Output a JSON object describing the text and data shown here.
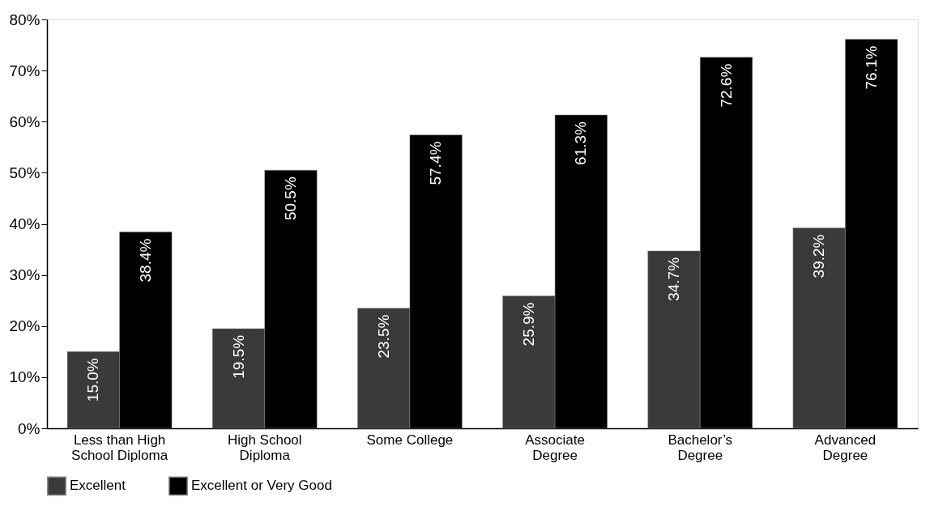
{
  "chart_data": {
    "type": "bar",
    "categories": [
      "Less than High\nSchool Diploma",
      "High School\nDiploma",
      "Some College",
      "Associate\nDegree",
      "Bachelor’s\nDegree",
      "Advanced\nDegree"
    ],
    "series": [
      {
        "name": "Excellent",
        "color": "#3a3a3a",
        "values": [
          15.0,
          19.5,
          23.5,
          25.9,
          34.7,
          39.2
        ]
      },
      {
        "name": "Excellent or Very Good",
        "color": "#000000",
        "values": [
          38.4,
          50.5,
          57.4,
          61.3,
          72.6,
          76.1
        ]
      }
    ],
    "ylim": [
      0,
      80
    ],
    "yticks": [
      {
        "value": 0,
        "label": "0%"
      },
      {
        "value": 10,
        "label": "10%"
      },
      {
        "value": 20,
        "label": "20%"
      },
      {
        "value": 30,
        "label": "30%"
      },
      {
        "value": 40,
        "label": "40%"
      },
      {
        "value": 50,
        "label": "50%"
      },
      {
        "value": 60,
        "label": "60%"
      },
      {
        "value": 70,
        "label": "70%"
      },
      {
        "value": 80,
        "label": "80%"
      }
    ],
    "value_labels": [
      [
        "15.0%",
        "19.5%",
        "23.5%",
        "25.9%",
        "34.7%",
        "39.2%"
      ],
      [
        "38.4%",
        "50.5%",
        "57.4%",
        "61.3%",
        "72.6%",
        "76.1%"
      ]
    ],
    "grid": false,
    "legend": "bottom"
  }
}
